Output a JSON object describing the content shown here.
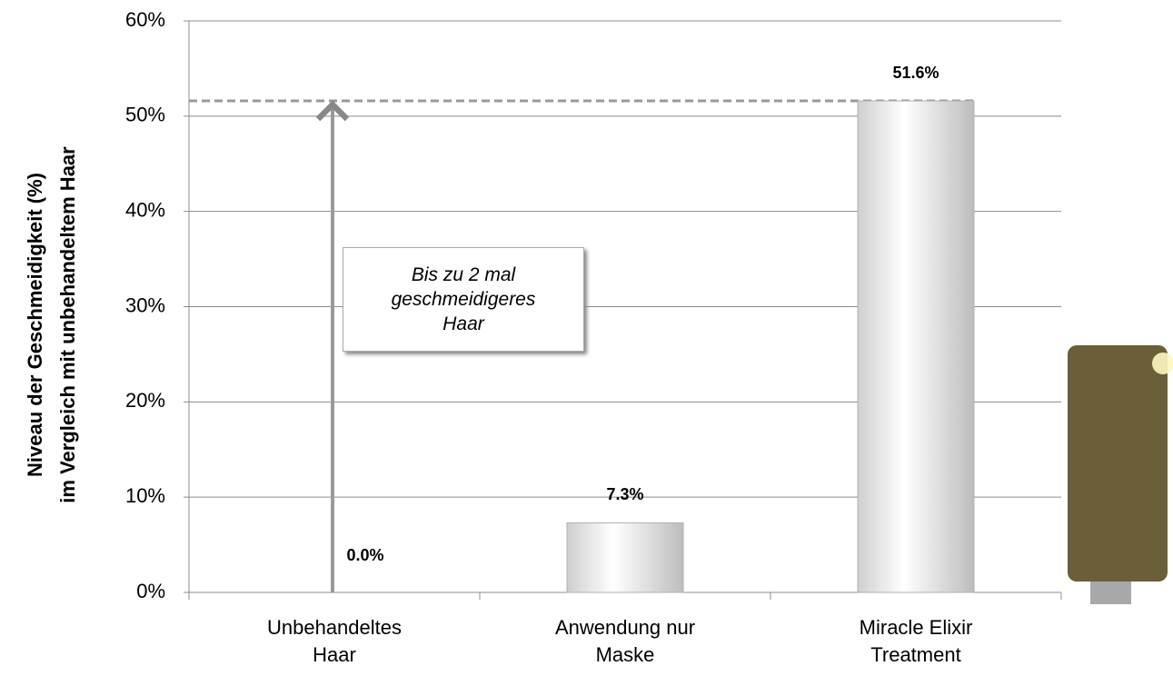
{
  "chart_data": {
    "type": "bar",
    "ylabel": [
      "Niveau der Geschmeidigkeit  (%)",
      "im Vergleich mit unbehandeltem Haar"
    ],
    "categories": [
      "Unbehandeltes Haar",
      "Anwendung nur Maske",
      "Miracle Elixir Treatment"
    ],
    "values": [
      0,
      7.3,
      51.6
    ],
    "value_labels": [
      "0.0%",
      "7.3%",
      "51.6%"
    ],
    "ylim": [
      0,
      60
    ],
    "yticks": [
      {
        "value": 0,
        "label": "0%"
      },
      {
        "value": 10,
        "label": "10%"
      },
      {
        "value": 20,
        "label": "20%"
      },
      {
        "value": 30,
        "label": "30%"
      },
      {
        "value": 40,
        "label": "40%"
      },
      {
        "value": 50,
        "label": "50%"
      },
      {
        "value": 60,
        "label": "60%"
      }
    ],
    "grid": true,
    "color": "#9a9a9a",
    "annotation": "Bis zu 2 mal geschmeidigeres Haar"
  }
}
